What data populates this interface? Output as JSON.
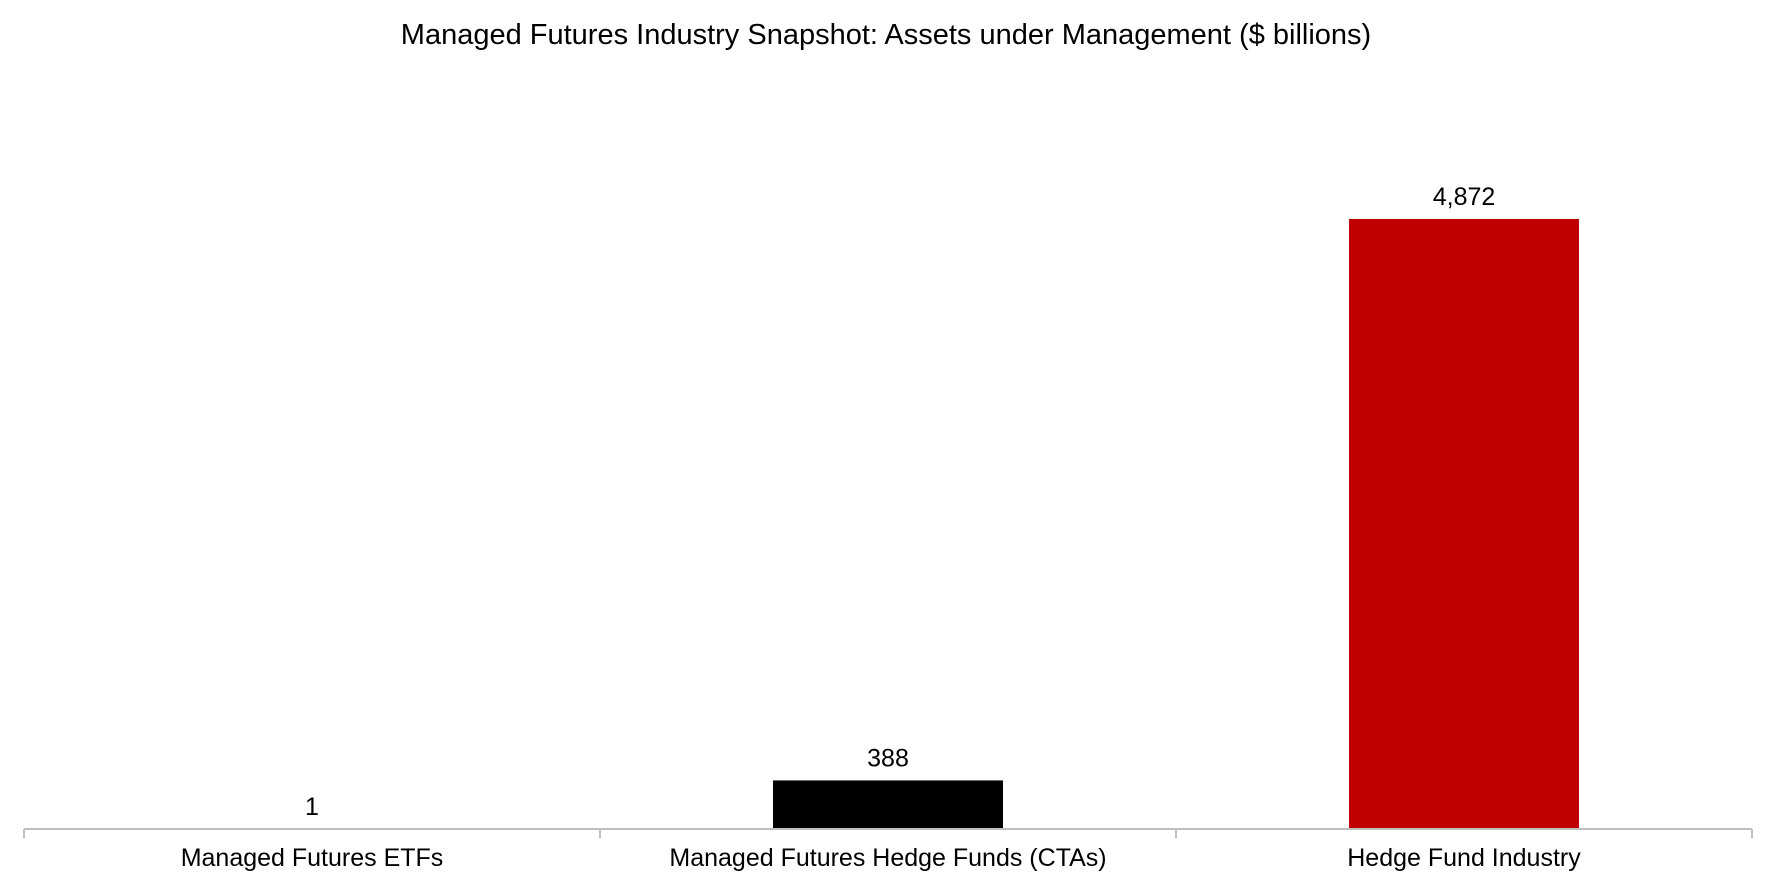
{
  "chart_data": {
    "type": "bar",
    "title": "Managed Futures Industry Snapshot: Assets under Management ($ billions)",
    "xlabel": "",
    "ylabel": "",
    "categories": [
      "Managed Futures ETFs",
      "Managed Futures Hedge Funds (CTAs)",
      "Hedge Fund Industry"
    ],
    "values": [
      1,
      388,
      4872
    ],
    "value_labels": [
      "1",
      "388",
      "4,872"
    ],
    "colors": [
      "#000000",
      "#000000",
      "#c00000"
    ],
    "ylim": [
      0,
      4872
    ],
    "grid": false,
    "legend": "none"
  }
}
